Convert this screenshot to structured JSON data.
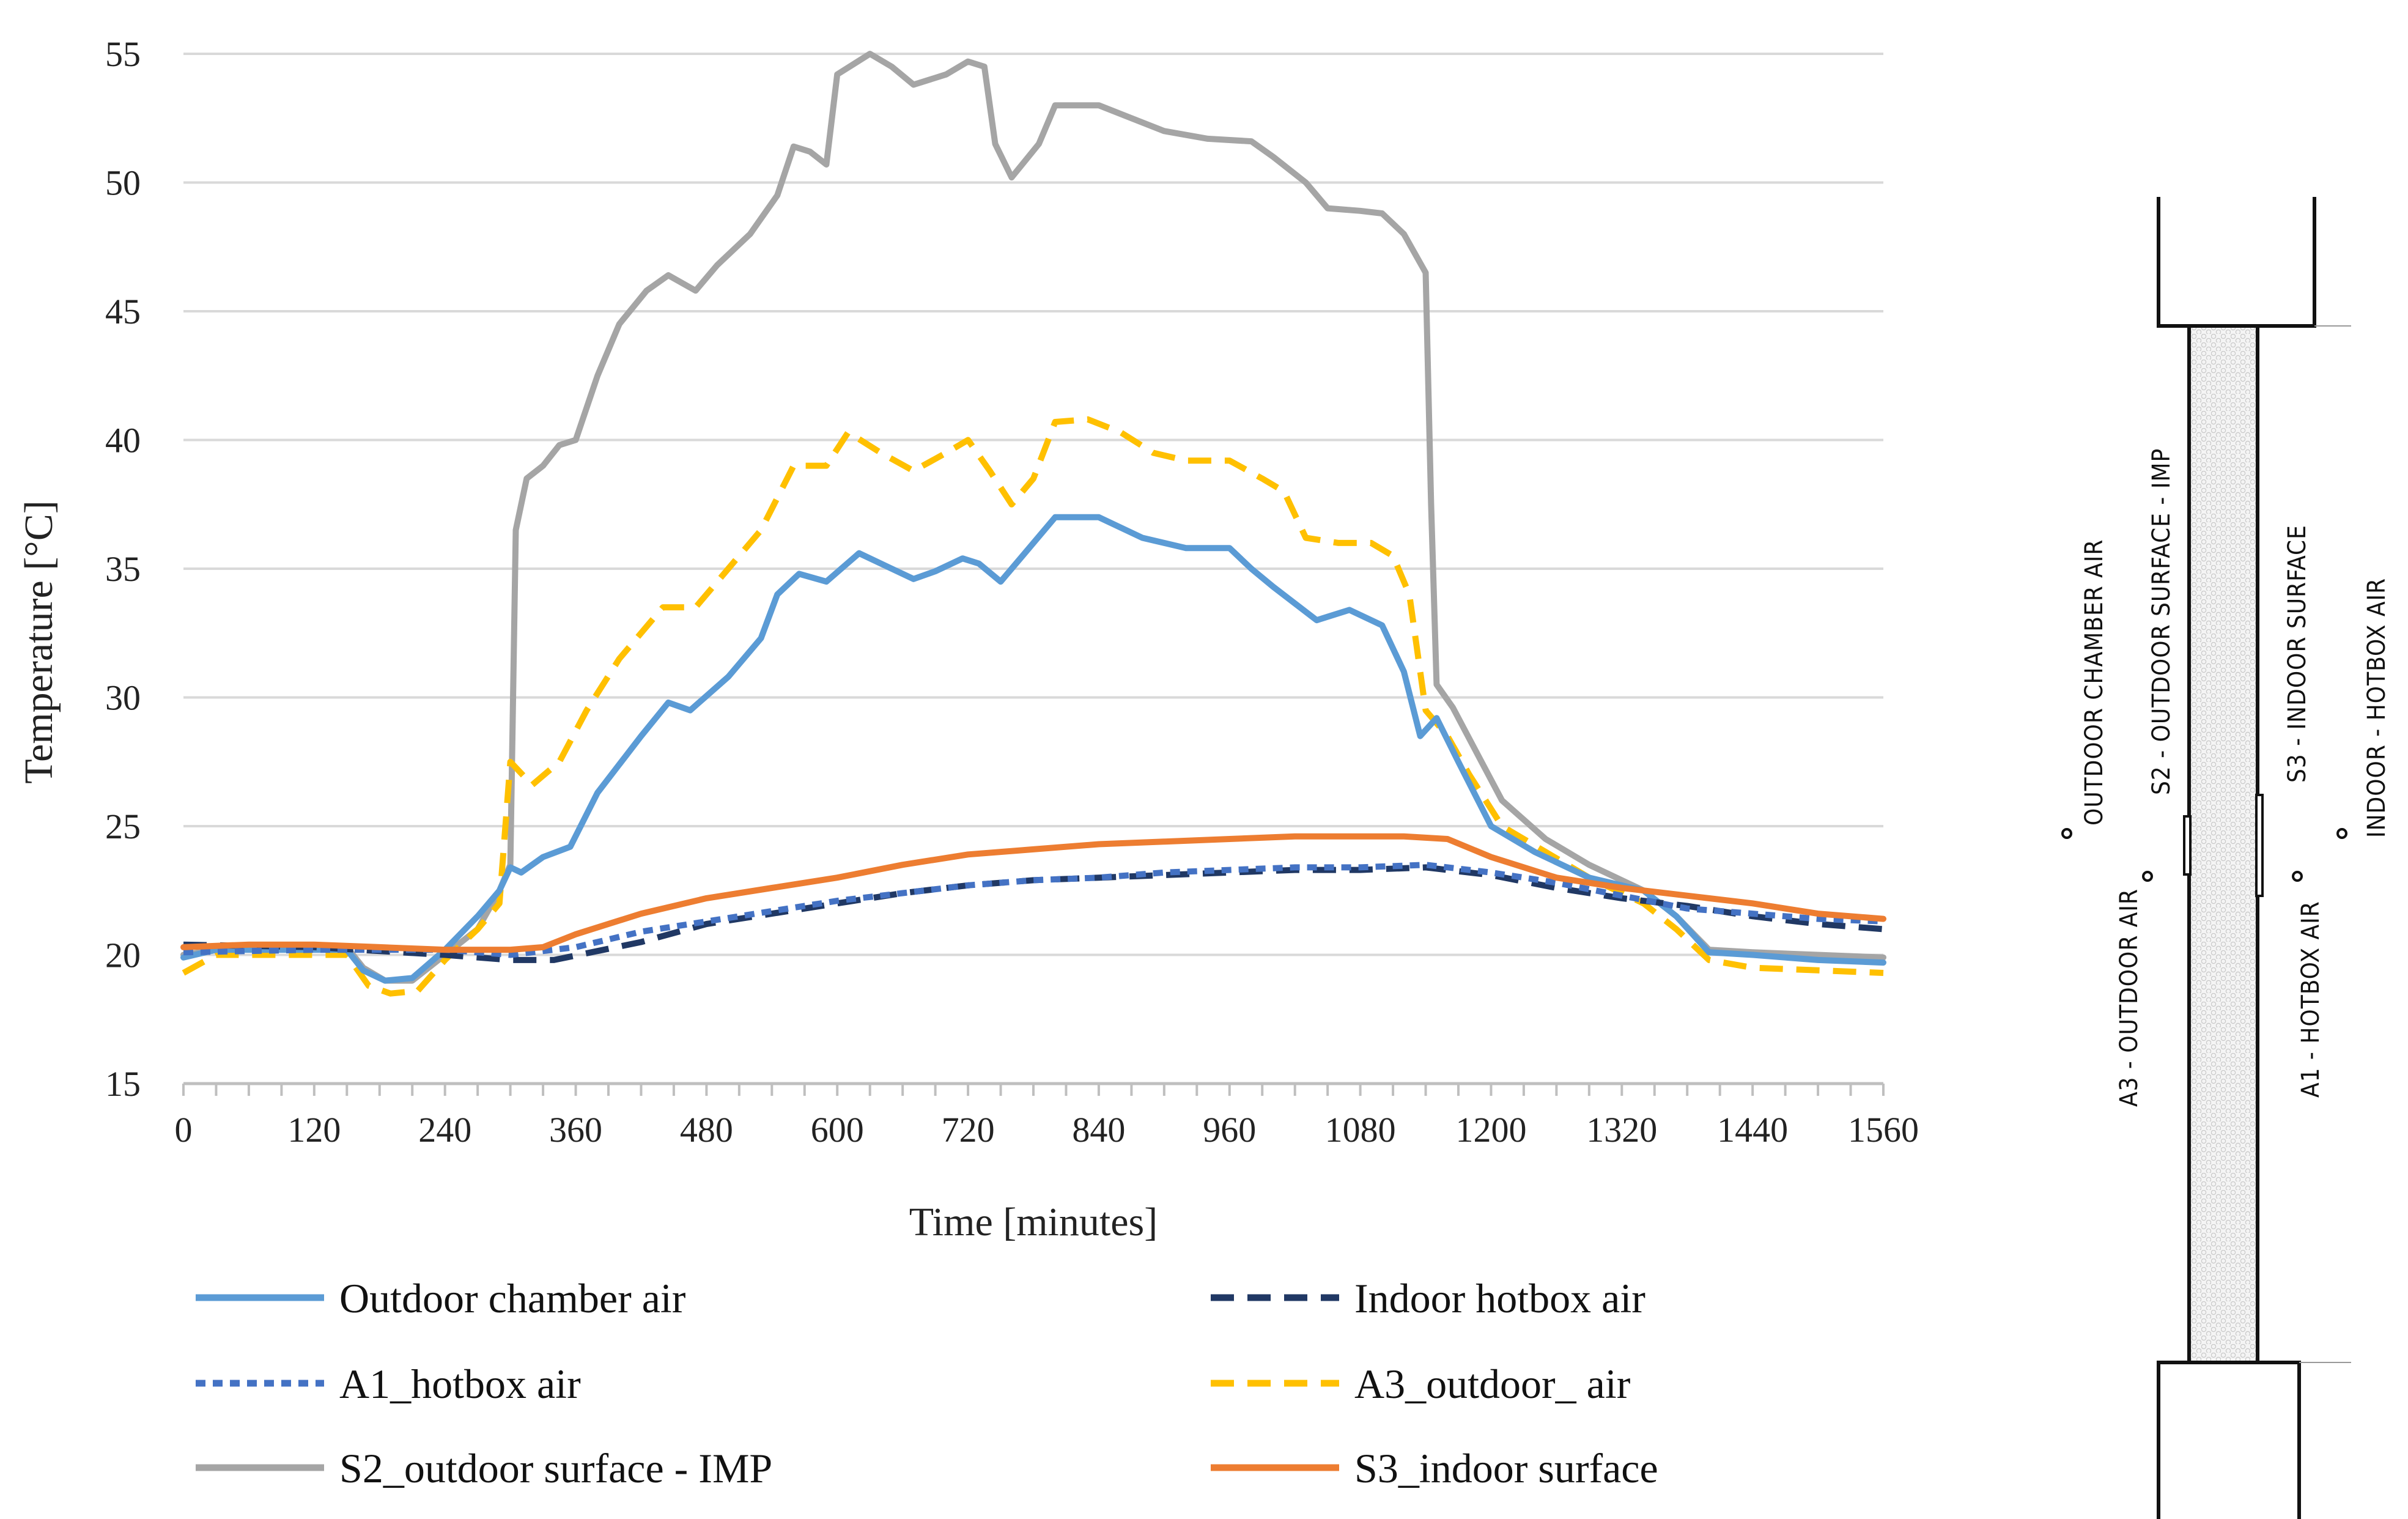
{
  "chart_data": {
    "type": "line",
    "title": "",
    "xlabel": "Time [minutes]",
    "ylabel": "Temperature [°C]",
    "xlim": [
      0,
      1560
    ],
    "ylim": [
      15,
      55
    ],
    "xticks": [
      0,
      120,
      240,
      360,
      480,
      600,
      720,
      840,
      960,
      1080,
      1200,
      1320,
      1440,
      1560
    ],
    "yticks": [
      15,
      20,
      25,
      30,
      35,
      40,
      45,
      50,
      55
    ],
    "grid": true,
    "legend_position": "bottom",
    "series": [
      {
        "name": "Outdoor chamber air",
        "color": "#5B9BD5",
        "dash": "solid",
        "points": [
          [
            0,
            19.9
          ],
          [
            30,
            20.2
          ],
          [
            60,
            20.2
          ],
          [
            120,
            20.2
          ],
          [
            150,
            20.2
          ],
          [
            165,
            19.4
          ],
          [
            185,
            19.0
          ],
          [
            210,
            19.1
          ],
          [
            240,
            20.2
          ],
          [
            270,
            21.5
          ],
          [
            290,
            22.5
          ],
          [
            300,
            23.4
          ],
          [
            310,
            23.2
          ],
          [
            330,
            23.8
          ],
          [
            355,
            24.2
          ],
          [
            380,
            26.3
          ],
          [
            420,
            28.5
          ],
          [
            445,
            29.8
          ],
          [
            465,
            29.5
          ],
          [
            500,
            30.8
          ],
          [
            530,
            32.3
          ],
          [
            545,
            34.0
          ],
          [
            565,
            34.8
          ],
          [
            590,
            34.5
          ],
          [
            620,
            35.6
          ],
          [
            650,
            35.0
          ],
          [
            670,
            34.6
          ],
          [
            690,
            34.9
          ],
          [
            715,
            35.4
          ],
          [
            730,
            35.2
          ],
          [
            750,
            34.5
          ],
          [
            770,
            35.5
          ],
          [
            800,
            37.0
          ],
          [
            840,
            37.0
          ],
          [
            880,
            36.2
          ],
          [
            920,
            35.8
          ],
          [
            960,
            35.8
          ],
          [
            980,
            35.0
          ],
          [
            1000,
            34.3
          ],
          [
            1040,
            33.0
          ],
          [
            1070,
            33.4
          ],
          [
            1100,
            32.8
          ],
          [
            1120,
            31.0
          ],
          [
            1135,
            28.5
          ],
          [
            1150,
            29.2
          ],
          [
            1170,
            27.5
          ],
          [
            1200,
            25.0
          ],
          [
            1240,
            24.0
          ],
          [
            1290,
            23.0
          ],
          [
            1340,
            22.5
          ],
          [
            1370,
            21.5
          ],
          [
            1400,
            20.1
          ],
          [
            1440,
            20.0
          ],
          [
            1500,
            19.8
          ],
          [
            1560,
            19.7
          ]
        ]
      },
      {
        "name": "Indoor hotbox air",
        "color": "#203864",
        "dash": "long-dash",
        "points": [
          [
            0,
            20.4
          ],
          [
            120,
            20.3
          ],
          [
            240,
            20.0
          ],
          [
            300,
            19.8
          ],
          [
            340,
            19.8
          ],
          [
            420,
            20.5
          ],
          [
            480,
            21.2
          ],
          [
            540,
            21.6
          ],
          [
            600,
            22.0
          ],
          [
            660,
            22.4
          ],
          [
            720,
            22.7
          ],
          [
            780,
            22.9
          ],
          [
            840,
            23.0
          ],
          [
            900,
            23.1
          ],
          [
            960,
            23.2
          ],
          [
            1020,
            23.3
          ],
          [
            1080,
            23.3
          ],
          [
            1140,
            23.4
          ],
          [
            1200,
            23.1
          ],
          [
            1260,
            22.6
          ],
          [
            1320,
            22.2
          ],
          [
            1380,
            21.9
          ],
          [
            1440,
            21.5
          ],
          [
            1500,
            21.2
          ],
          [
            1560,
            21.0
          ]
        ]
      },
      {
        "name": "A1_hotbox air",
        "color": "#4472C4",
        "dash": "short-dash",
        "points": [
          [
            0,
            20.1
          ],
          [
            120,
            20.2
          ],
          [
            240,
            20.2
          ],
          [
            300,
            20.0
          ],
          [
            360,
            20.3
          ],
          [
            420,
            20.9
          ],
          [
            480,
            21.3
          ],
          [
            540,
            21.7
          ],
          [
            600,
            22.1
          ],
          [
            660,
            22.4
          ],
          [
            720,
            22.7
          ],
          [
            780,
            22.9
          ],
          [
            840,
            23.0
          ],
          [
            900,
            23.2
          ],
          [
            960,
            23.3
          ],
          [
            1020,
            23.4
          ],
          [
            1080,
            23.4
          ],
          [
            1140,
            23.5
          ],
          [
            1200,
            23.2
          ],
          [
            1260,
            22.8
          ],
          [
            1320,
            22.3
          ],
          [
            1380,
            21.8
          ],
          [
            1440,
            21.6
          ],
          [
            1500,
            21.4
          ],
          [
            1560,
            21.3
          ]
        ]
      },
      {
        "name": "A3_outdoor_ air",
        "color": "#FFC000",
        "dash": "long-dash",
        "points": [
          [
            0,
            19.3
          ],
          [
            30,
            20.0
          ],
          [
            60,
            20.0
          ],
          [
            120,
            20.0
          ],
          [
            150,
            20.0
          ],
          [
            170,
            18.8
          ],
          [
            190,
            18.5
          ],
          [
            215,
            18.6
          ],
          [
            240,
            19.8
          ],
          [
            270,
            21.0
          ],
          [
            290,
            22.0
          ],
          [
            300,
            27.5
          ],
          [
            320,
            26.6
          ],
          [
            345,
            27.5
          ],
          [
            370,
            29.5
          ],
          [
            400,
            31.5
          ],
          [
            440,
            33.5
          ],
          [
            470,
            33.5
          ],
          [
            500,
            35.0
          ],
          [
            530,
            36.5
          ],
          [
            560,
            39.0
          ],
          [
            590,
            39.0
          ],
          [
            610,
            40.3
          ],
          [
            640,
            39.5
          ],
          [
            670,
            38.8
          ],
          [
            700,
            39.5
          ],
          [
            720,
            40.0
          ],
          [
            740,
            38.8
          ],
          [
            760,
            37.5
          ],
          [
            780,
            38.5
          ],
          [
            800,
            40.7
          ],
          [
            830,
            40.8
          ],
          [
            860,
            40.3
          ],
          [
            890,
            39.5
          ],
          [
            920,
            39.2
          ],
          [
            960,
            39.2
          ],
          [
            990,
            38.5
          ],
          [
            1010,
            38.0
          ],
          [
            1030,
            36.2
          ],
          [
            1060,
            36.0
          ],
          [
            1090,
            36.0
          ],
          [
            1110,
            35.5
          ],
          [
            1125,
            34.0
          ],
          [
            1140,
            29.5
          ],
          [
            1160,
            28.5
          ],
          [
            1180,
            27.0
          ],
          [
            1210,
            25.0
          ],
          [
            1250,
            24.0
          ],
          [
            1290,
            23.0
          ],
          [
            1340,
            22.0
          ],
          [
            1370,
            21.0
          ],
          [
            1400,
            19.8
          ],
          [
            1440,
            19.5
          ],
          [
            1500,
            19.4
          ],
          [
            1560,
            19.3
          ]
        ]
      },
      {
        "name": "S2_outdoor surface - IMP",
        "color": "#A5A5A5",
        "dash": "solid",
        "points": [
          [
            0,
            20.0
          ],
          [
            30,
            20.2
          ],
          [
            60,
            20.3
          ],
          [
            120,
            20.3
          ],
          [
            150,
            20.3
          ],
          [
            165,
            19.5
          ],
          [
            185,
            19.0
          ],
          [
            210,
            19.0
          ],
          [
            240,
            20.0
          ],
          [
            270,
            21.0
          ],
          [
            290,
            22.5
          ],
          [
            300,
            23.5
          ],
          [
            305,
            36.5
          ],
          [
            315,
            38.5
          ],
          [
            330,
            39.0
          ],
          [
            345,
            39.8
          ],
          [
            360,
            40.0
          ],
          [
            380,
            42.5
          ],
          [
            400,
            44.5
          ],
          [
            425,
            45.8
          ],
          [
            445,
            46.4
          ],
          [
            470,
            45.8
          ],
          [
            490,
            46.8
          ],
          [
            520,
            48.0
          ],
          [
            545,
            49.5
          ],
          [
            560,
            51.4
          ],
          [
            575,
            51.2
          ],
          [
            590,
            50.7
          ],
          [
            600,
            54.2
          ],
          [
            630,
            55.0
          ],
          [
            650,
            54.5
          ],
          [
            670,
            53.8
          ],
          [
            700,
            54.2
          ],
          [
            720,
            54.7
          ],
          [
            735,
            54.5
          ],
          [
            745,
            51.5
          ],
          [
            760,
            50.2
          ],
          [
            785,
            51.5
          ],
          [
            800,
            53.0
          ],
          [
            840,
            53.0
          ],
          [
            870,
            52.5
          ],
          [
            900,
            52.0
          ],
          [
            940,
            51.7
          ],
          [
            980,
            51.6
          ],
          [
            1000,
            51.0
          ],
          [
            1030,
            50.0
          ],
          [
            1050,
            49.0
          ],
          [
            1080,
            48.9
          ],
          [
            1100,
            48.8
          ],
          [
            1120,
            48.0
          ],
          [
            1140,
            46.5
          ],
          [
            1145,
            37.5
          ],
          [
            1150,
            30.5
          ],
          [
            1165,
            29.6
          ],
          [
            1185,
            28.0
          ],
          [
            1210,
            26.0
          ],
          [
            1250,
            24.5
          ],
          [
            1290,
            23.5
          ],
          [
            1340,
            22.5
          ],
          [
            1370,
            21.5
          ],
          [
            1400,
            20.2
          ],
          [
            1440,
            20.1
          ],
          [
            1500,
            20.0
          ],
          [
            1560,
            19.9
          ]
        ]
      },
      {
        "name": "S3_indoor surface",
        "color": "#ED7D31",
        "dash": "solid",
        "points": [
          [
            0,
            20.3
          ],
          [
            60,
            20.4
          ],
          [
            120,
            20.4
          ],
          [
            180,
            20.3
          ],
          [
            240,
            20.2
          ],
          [
            300,
            20.2
          ],
          [
            330,
            20.3
          ],
          [
            360,
            20.8
          ],
          [
            420,
            21.6
          ],
          [
            480,
            22.2
          ],
          [
            540,
            22.6
          ],
          [
            600,
            23.0
          ],
          [
            660,
            23.5
          ],
          [
            720,
            23.9
          ],
          [
            780,
            24.1
          ],
          [
            840,
            24.3
          ],
          [
            900,
            24.4
          ],
          [
            960,
            24.5
          ],
          [
            1020,
            24.6
          ],
          [
            1080,
            24.6
          ],
          [
            1120,
            24.6
          ],
          [
            1160,
            24.5
          ],
          [
            1200,
            23.8
          ],
          [
            1260,
            23.0
          ],
          [
            1320,
            22.6
          ],
          [
            1380,
            22.3
          ],
          [
            1440,
            22.0
          ],
          [
            1500,
            21.6
          ],
          [
            1560,
            21.4
          ]
        ]
      }
    ]
  },
  "diagram": {
    "labels": {
      "outdoor_chamber_air": "OUTDOOR CHAMBER AIR",
      "a3_outdoor_air": "A3 - OUTDOOR AIR",
      "s2_outdoor_surface": "S2 - OUTDOOR SURFACE - IMP",
      "s3_indoor_surface": "S3 - INDOOR SURFACE",
      "a1_hotbox_air": "A1 - HOTBOX AIR",
      "indoor_hotbox_air": "INDOOR - HOTBOX AIR"
    }
  }
}
